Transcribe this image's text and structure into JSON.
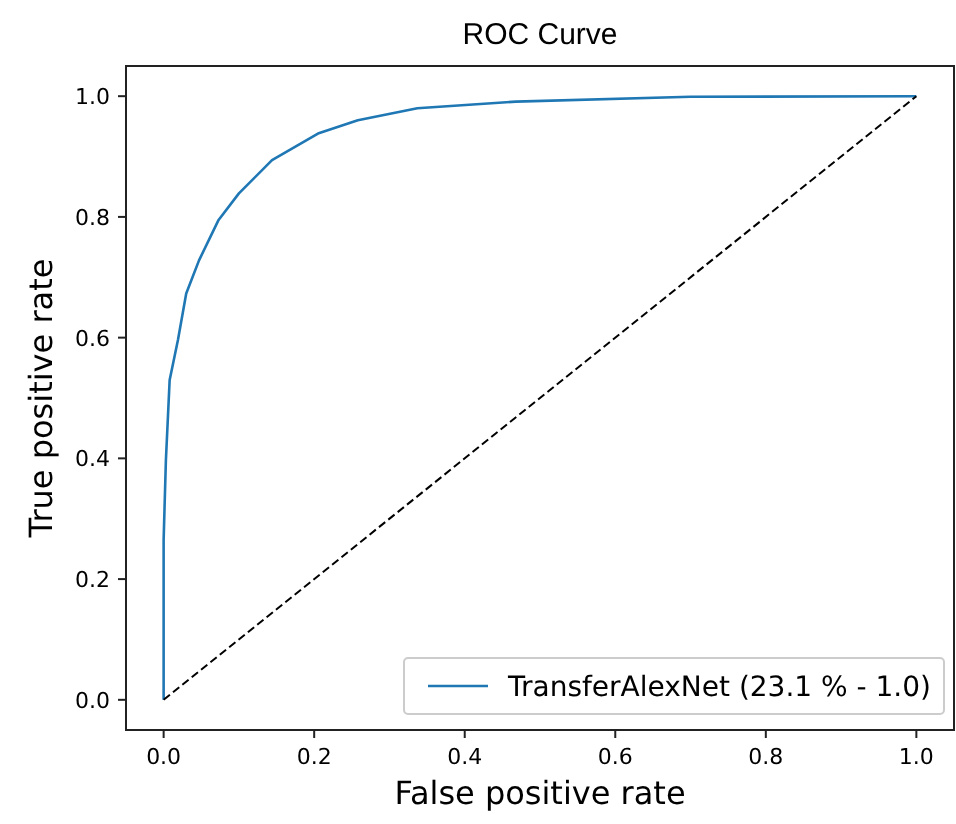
{
  "chart_data": {
    "type": "line",
    "title": "ROC Curve",
    "xlabel": "False positive rate",
    "ylabel": "True positive rate",
    "xlim": [
      -0.05,
      1.05
    ],
    "ylim": [
      -0.05,
      1.05
    ],
    "xticks": [
      {
        "value": 0,
        "label": "0.0"
      },
      0.2,
      0.4,
      0.6,
      0.8,
      {
        "value": 1,
        "label": "1.0"
      }
    ],
    "yticks": [
      {
        "value": 0,
        "label": "0.0"
      },
      0.2,
      0.4,
      0.6,
      0.8,
      {
        "value": 1,
        "label": "1.0"
      }
    ],
    "legend": "bottom right",
    "grid": false,
    "series": [
      {
        "name": "TransferAlexNet (23.1 % - 1.0)",
        "color": "#1f77b4",
        "line_style": "solid",
        "x": [
          0,
          0,
          0.003,
          0.008,
          0.019,
          0.03,
          0.047,
          0.073,
          0.1,
          0.144,
          0.205,
          0.258,
          0.337,
          0.468,
          0.7,
          1
        ],
        "values": [
          0,
          0.265,
          0.397,
          0.53,
          0.596,
          0.673,
          0.728,
          0.795,
          0.839,
          0.894,
          0.938,
          0.96,
          0.98,
          0.991,
          0.999,
          1
        ]
      },
      {
        "color": "#000000",
        "line_style": "dashed",
        "x": [
          0,
          1
        ],
        "values": [
          0,
          1
        ]
      }
    ]
  }
}
